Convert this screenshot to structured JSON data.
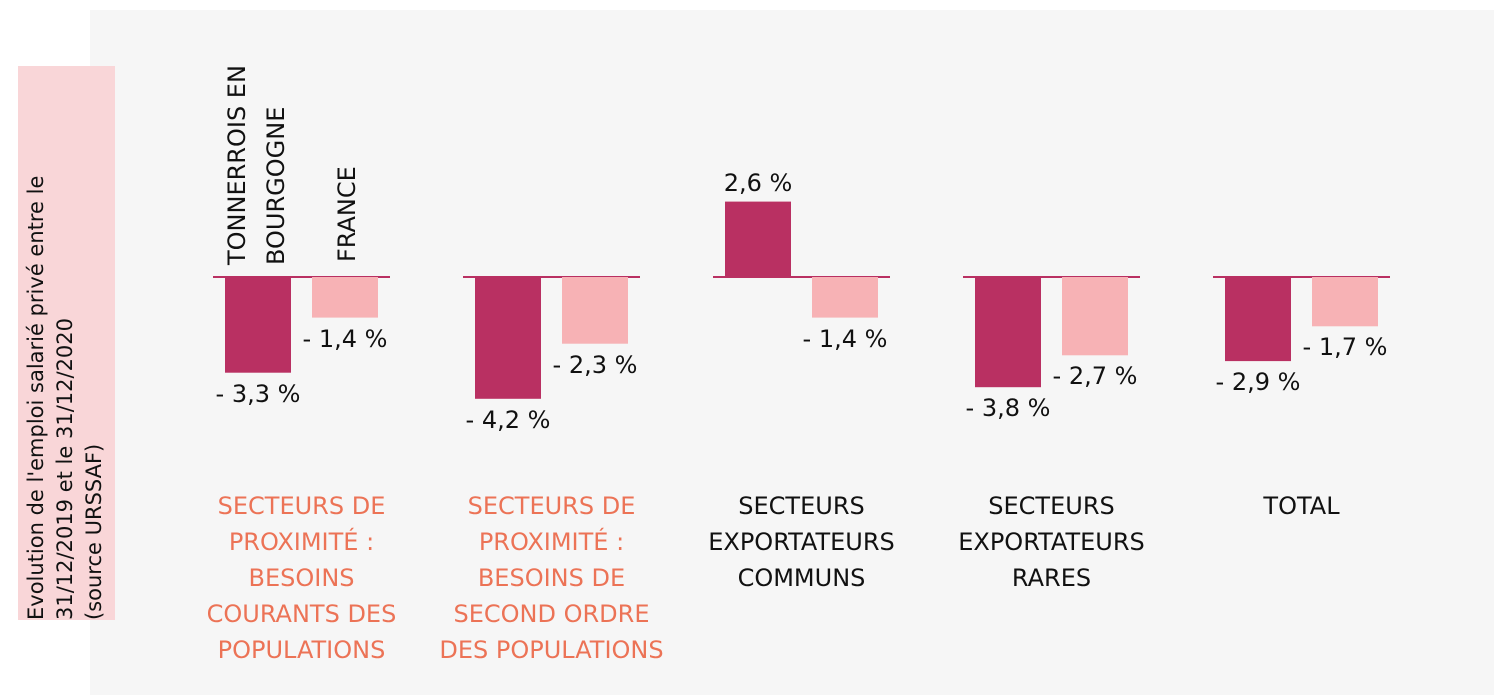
{
  "chart_data": {
    "type": "bar",
    "ylabel": "Evolution de l'emploi salarié privé entre le\n31/12/2019 et le 31/12/2020\n(source URSSAF)",
    "categories": [
      "SECTEURS DE\nPROXIMITÉ  :\nBESOINS\nCOURANTS DES\nPOPULATIONS",
      "SECTEURS DE\nPROXIMITÉ :\nBESOINS DE\nSECOND ORDRE\nDES POPULATIONS",
      "SECTEURS\nEXPORTATEURS\nCOMMUNS",
      "SECTEURS\nEXPORTATEURS\nRARES",
      "TOTAL"
    ],
    "category_colors": [
      "#ec7356",
      "#ec7356",
      "#111111",
      "#111111",
      "#111111"
    ],
    "series": [
      {
        "name": "TONNERROIS EN\nBOURGOGNE",
        "color": "#b93062",
        "values": [
          -3.3,
          -4.2,
          2.6,
          -3.8,
          -2.9
        ],
        "value_labels": [
          "- 3,3 %",
          "- 4,2 %",
          "2,6 %",
          "- 3,8 %",
          "- 2,9 %"
        ]
      },
      {
        "name": "FRANCE",
        "color": "#f7b2b5",
        "values": [
          -1.4,
          -2.3,
          -1.4,
          -2.7,
          -1.7
        ],
        "value_labels": [
          "- 1,4 %",
          "- 2,3 %",
          "- 1,4 %",
          "- 2,7 %",
          "- 1,7 %"
        ]
      }
    ],
    "ylim": [
      -5,
      3
    ],
    "zero_line_color": "#b93062"
  }
}
